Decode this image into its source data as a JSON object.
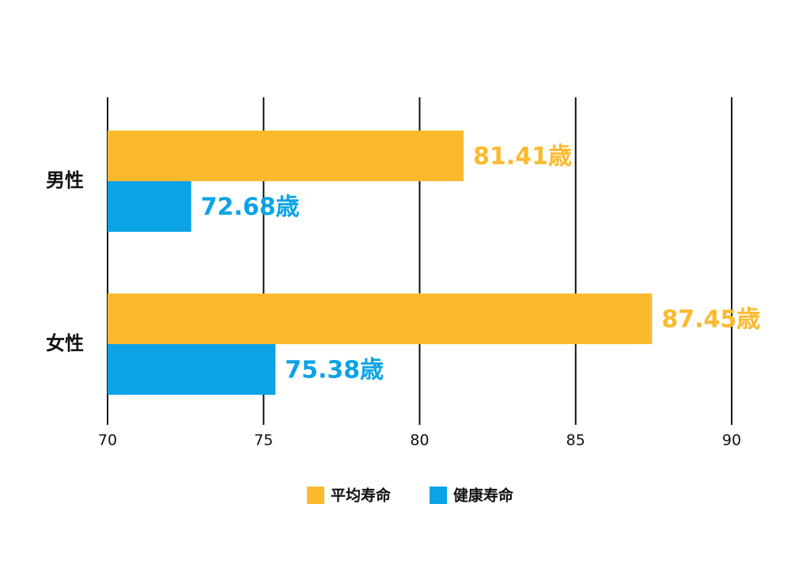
{
  "chart_data": {
    "type": "hbar",
    "categories": [
      "男性",
      "女性"
    ],
    "series": [
      {
        "name": "平均寿命",
        "color": "#fbba2e",
        "values": [
          81.41,
          87.45
        ],
        "value_labels": [
          "81.41歳",
          "87.45歳"
        ]
      },
      {
        "name": "健康寿命",
        "color": "#0ba3e6",
        "values": [
          72.68,
          75.38
        ],
        "value_labels": [
          "72.68歳",
          "75.38歳"
        ]
      }
    ],
    "xlim": [
      70,
      90
    ],
    "xticks": [
      70,
      75,
      80,
      85,
      90
    ],
    "grid": true,
    "legend": "bottom"
  }
}
